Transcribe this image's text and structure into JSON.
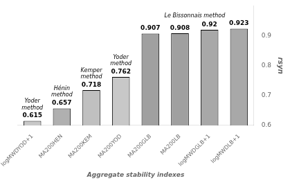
{
  "chart_data": {
    "type": "bar",
    "categories": [
      "logMWDYOD+1",
      "MA200HEN",
      "MA200KEM",
      "MA200YOD",
      "MA200GLB",
      "MA200LB",
      "logMWDGLB+1",
      "logMWDLB+1"
    ],
    "values": [
      0.615,
      0.657,
      0.718,
      0.762,
      0.907,
      0.908,
      0.92,
      0.923
    ],
    "colors": [
      "#c8c8c8",
      "#b0b0b0",
      "#c0c0c0",
      "#c8c8c8",
      "#a0a0a0",
      "#a0a0a0",
      "#a8a8a8",
      "#a8a8a8"
    ],
    "data_labels": true,
    "xlabel": "Aggregate stability indexes",
    "ylabel": "rsyn",
    "ylim": [
      0.6,
      1.0
    ],
    "yticks": [
      0.6,
      0.7,
      0.8,
      0.9
    ],
    "grid": false,
    "annotations": [
      {
        "text": "Yoder\nmethod",
        "categories": [
          "logMWDYOD+1"
        ]
      },
      {
        "text": "Hénin\nmethod",
        "categories": [
          "MA200HEN"
        ]
      },
      {
        "text": "Kemper\nmethod",
        "categories": [
          "MA200KEM"
        ]
      },
      {
        "text": "Yoder\nmethod",
        "categories": [
          "MA200YOD"
        ]
      },
      {
        "text": "Le Bissonnais method",
        "categories": [
          "MA200GLB",
          "MA200LB",
          "logMWDGLB+1",
          "logMWDLB+1"
        ]
      }
    ]
  }
}
